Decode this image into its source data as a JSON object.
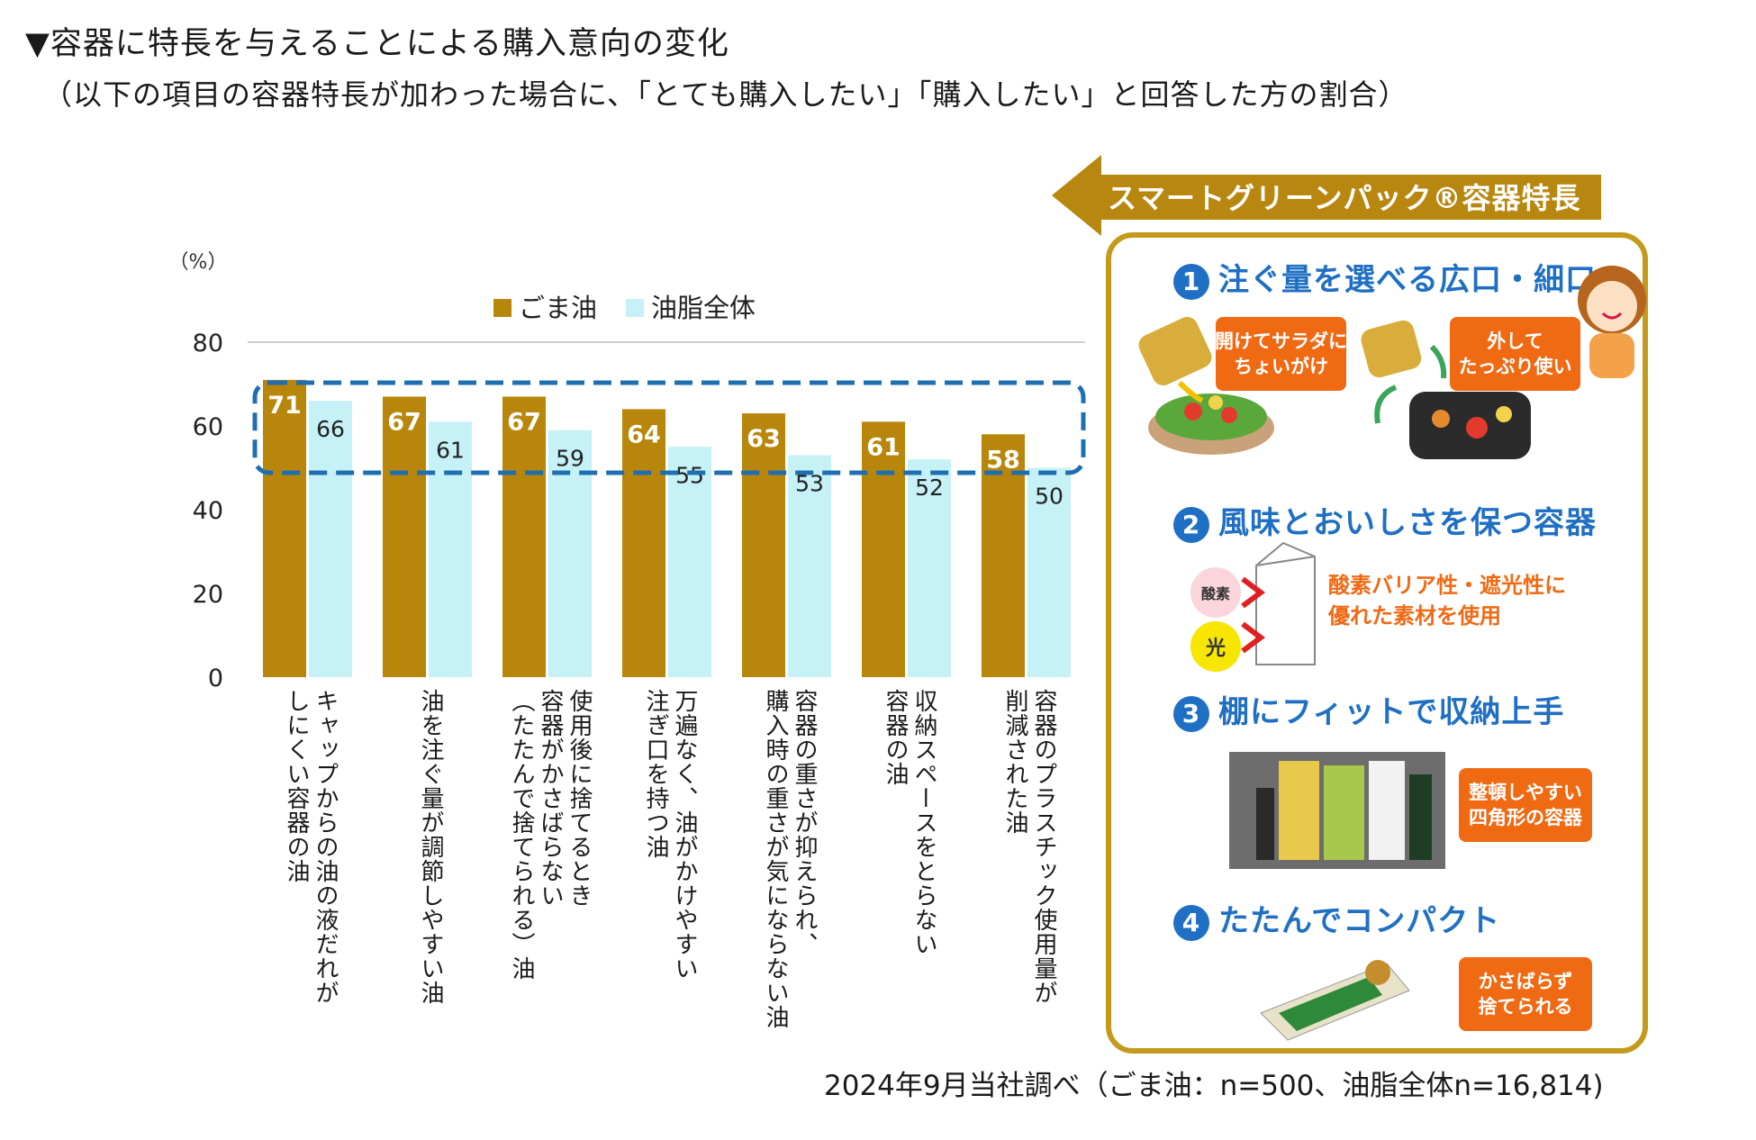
{
  "header": {
    "title": "▼容器に特長を与えることによる購入意向の変化",
    "subtitle": "（以下の項目の容器特長が加わった場合に、「とても購入したい」「購入したい」と回答した方の割合）"
  },
  "chart_data": {
    "type": "bar",
    "ylabel": "（%）",
    "ylim": [
      0,
      80
    ],
    "yticks": [
      "0",
      "20",
      "40",
      "60",
      "80"
    ],
    "categories": [
      "キャップからの油の液だれが\nしにくい容器の油",
      "油を注ぐ量が調節しやすい油",
      "使用後に捨てるとき\n容器がかさばらない\n（たたんで捨てられる）油",
      "万遍なく、油がかけやすい\n注ぎ口を持つ油",
      "容器の重さが抑えられ、\n購入時の重さが気にならない油",
      "収納スペースをとらない\n容器の油",
      "容器のプラスチック使用量が\n削減された油"
    ],
    "series": [
      {
        "name": "ごま油",
        "color": "#b8860b",
        "values": [
          71,
          67,
          67,
          64,
          63,
          61,
          58
        ]
      },
      {
        "name": "油脂全体",
        "color": "#c5f1f7",
        "values": [
          66,
          61,
          59,
          55,
          53,
          52,
          50
        ]
      }
    ],
    "legend": "top-center",
    "highlight_color": "#1f6fb0"
  },
  "footnote": "2024年9月当社調べ（ごま油：n=500、油脂全体n=16,814)",
  "panel": {
    "banner": "スマートグリーンパック®容器特長",
    "features": [
      {
        "num": "1",
        "title": "注ぐ量を選べる広口・細口",
        "notes": [
          "開けてサラダに\nちょいがけ",
          "外して\nたっぷり使い"
        ]
      },
      {
        "num": "2",
        "title": "風味とおいしさを保つ容器",
        "notes": [
          "酸素バリア性・遮光性に\n優れた素材を使用"
        ],
        "badges": [
          "酸素",
          "光"
        ]
      },
      {
        "num": "3",
        "title": "棚にフィットで収納上手",
        "notes": [
          "整頓しやすい\n四角形の容器"
        ]
      },
      {
        "num": "4",
        "title": "たたんでコンパクト",
        "notes": [
          "かさばらず\n捨てられる"
        ]
      }
    ]
  }
}
